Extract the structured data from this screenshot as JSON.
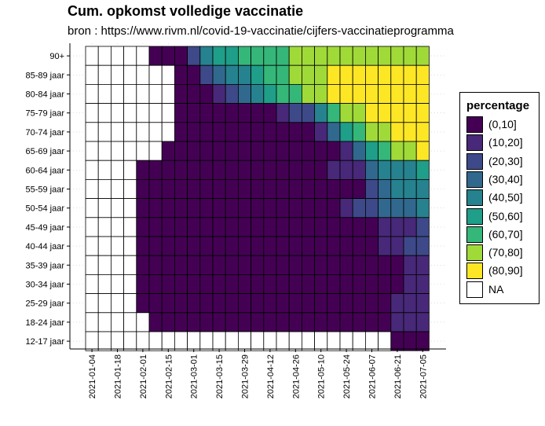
{
  "chart_data": {
    "type": "heatmap",
    "title": "Cum. opkomst volledige vaccinatie",
    "subtitle": "bron : https://www.rivm.nl/covid-19-vaccinatie/cijfers-vaccinatieprogramma",
    "xlabel": "",
    "ylabel": "",
    "x_tick_labels": [
      "2021-01-04",
      "2021-01-18",
      "2021-02-01",
      "2021-02-15",
      "2021-03-01",
      "2021-03-15",
      "2021-03-29",
      "2021-04-12",
      "2021-04-26",
      "2021-05-10",
      "2021-05-24",
      "2021-06-07",
      "2021-06-21",
      "2021-07-05"
    ],
    "x": [
      "2021-01-04",
      "2021-01-11",
      "2021-01-18",
      "2021-01-25",
      "2021-02-01",
      "2021-02-08",
      "2021-02-15",
      "2021-02-22",
      "2021-03-01",
      "2021-03-08",
      "2021-03-15",
      "2021-03-22",
      "2021-03-29",
      "2021-04-05",
      "2021-04-12",
      "2021-04-19",
      "2021-04-26",
      "2021-05-03",
      "2021-05-10",
      "2021-05-17",
      "2021-05-24",
      "2021-05-31",
      "2021-06-07",
      "2021-06-14",
      "2021-06-21",
      "2021-06-28",
      "2021-07-05"
    ],
    "y": [
      "90+",
      "85-89 jaar",
      "80-84 jaar",
      "75-79 jaar",
      "70-74 jaar",
      "65-69 jaar",
      "60-64 jaar",
      "55-59 jaar",
      "50-54 jaar",
      "45-49 jaar",
      "40-44 jaar",
      "35-39 jaar",
      "30-34 jaar",
      "25-29 jaar",
      "18-24 jaar",
      "12-17 jaar"
    ],
    "values": [
      [
        null,
        null,
        null,
        null,
        null,
        0,
        0,
        0,
        2,
        4,
        5,
        5,
        6,
        6,
        6,
        6,
        7,
        7,
        7,
        7,
        7,
        7,
        7,
        7,
        7,
        7,
        7
      ],
      [
        null,
        null,
        null,
        null,
        null,
        null,
        null,
        0,
        0,
        2,
        3,
        4,
        4,
        5,
        6,
        6,
        7,
        7,
        7,
        8,
        8,
        8,
        8,
        8,
        8,
        8,
        8
      ],
      [
        null,
        null,
        null,
        null,
        null,
        null,
        null,
        0,
        0,
        0,
        1,
        2,
        3,
        4,
        5,
        6,
        6,
        7,
        7,
        8,
        8,
        8,
        8,
        8,
        8,
        8,
        8
      ],
      [
        null,
        null,
        null,
        null,
        null,
        null,
        null,
        0,
        0,
        0,
        0,
        0,
        0,
        0,
        0,
        1,
        2,
        2,
        4,
        6,
        7,
        7,
        8,
        8,
        8,
        8,
        8
      ],
      [
        null,
        null,
        null,
        null,
        null,
        null,
        null,
        0,
        0,
        0,
        0,
        0,
        0,
        0,
        0,
        0,
        0,
        0,
        1,
        3,
        5,
        6,
        7,
        7,
        8,
        8,
        8
      ],
      [
        null,
        null,
        null,
        null,
        null,
        null,
        0,
        0,
        0,
        0,
        0,
        0,
        0,
        0,
        0,
        0,
        0,
        0,
        0,
        0,
        1,
        3,
        5,
        6,
        7,
        7,
        8
      ],
      [
        null,
        null,
        null,
        null,
        0,
        0,
        0,
        0,
        0,
        0,
        0,
        0,
        0,
        0,
        0,
        0,
        0,
        0,
        0,
        1,
        1,
        1,
        3,
        4,
        4,
        4,
        5
      ],
      [
        null,
        null,
        null,
        null,
        0,
        0,
        0,
        0,
        0,
        0,
        0,
        0,
        0,
        0,
        0,
        0,
        0,
        0,
        0,
        0,
        0,
        0,
        2,
        3,
        4,
        4,
        4
      ],
      [
        null,
        null,
        null,
        null,
        0,
        0,
        0,
        0,
        0,
        0,
        0,
        0,
        0,
        0,
        0,
        0,
        0,
        0,
        0,
        0,
        1,
        2,
        2,
        3,
        3,
        3,
        4
      ],
      [
        null,
        null,
        null,
        null,
        0,
        0,
        0,
        0,
        0,
        0,
        0,
        0,
        0,
        0,
        0,
        0,
        0,
        0,
        0,
        0,
        0,
        0,
        0,
        1,
        1,
        1,
        2
      ],
      [
        null,
        null,
        null,
        null,
        0,
        0,
        0,
        0,
        0,
        0,
        0,
        0,
        0,
        0,
        0,
        0,
        0,
        0,
        0,
        0,
        0,
        0,
        0,
        1,
        1,
        2,
        2
      ],
      [
        null,
        null,
        null,
        null,
        0,
        0,
        0,
        0,
        0,
        0,
        0,
        0,
        0,
        0,
        0,
        0,
        0,
        0,
        0,
        0,
        0,
        0,
        0,
        0,
        0,
        1,
        1
      ],
      [
        null,
        null,
        null,
        null,
        0,
        0,
        0,
        0,
        0,
        0,
        0,
        0,
        0,
        0,
        0,
        0,
        0,
        0,
        0,
        0,
        0,
        0,
        0,
        0,
        0,
        1,
        1
      ],
      [
        null,
        null,
        null,
        null,
        0,
        0,
        0,
        0,
        0,
        0,
        0,
        0,
        0,
        0,
        0,
        0,
        0,
        0,
        0,
        0,
        0,
        0,
        0,
        0,
        1,
        1,
        1
      ],
      [
        null,
        null,
        null,
        null,
        null,
        0,
        0,
        0,
        0,
        0,
        0,
        0,
        0,
        0,
        0,
        0,
        0,
        0,
        0,
        0,
        0,
        0,
        0,
        0,
        1,
        1,
        1
      ],
      [
        null,
        null,
        null,
        null,
        null,
        null,
        null,
        null,
        null,
        null,
        null,
        null,
        null,
        null,
        null,
        null,
        null,
        null,
        null,
        null,
        null,
        null,
        null,
        null,
        0,
        0,
        0
      ]
    ],
    "legend_title": "percentage",
    "legend_labels": [
      "(0,10]",
      "(10,20]",
      "(20,30]",
      "(30,40]",
      "(40,50]",
      "(50,60]",
      "(60,70]",
      "(70,80]",
      "(80,90]",
      "NA"
    ],
    "colors": [
      "#440154",
      "#482878",
      "#3e4989",
      "#31688e",
      "#26828e",
      "#1f9e89",
      "#35b779",
      "#a0da39",
      "#fde725",
      "#ffffff"
    ],
    "legend_placement": "right",
    "grid": true
  }
}
